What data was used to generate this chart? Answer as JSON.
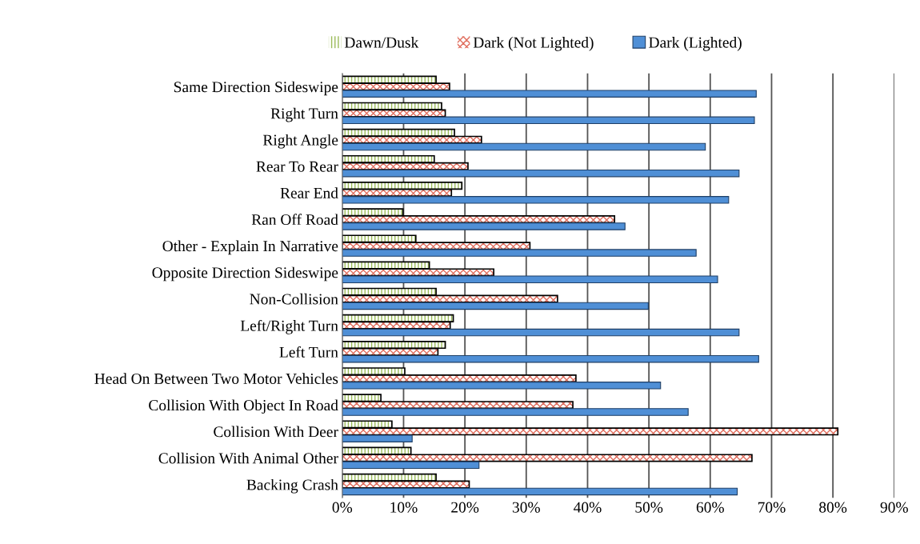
{
  "chart_data": {
    "type": "bar",
    "orientation": "horizontal",
    "categories": [
      "Same Direction Sideswipe",
      "Right Turn",
      "Right Angle",
      "Rear To Rear",
      "Rear End",
      "Ran Off Road",
      "Other - Explain In Narrative",
      "Opposite Direction Sideswipe",
      "Non-Collision",
      "Left/Right Turn",
      "Left Turn",
      "Head On Between Two Motor Vehicles",
      "Collision With Object In Road",
      "Collision With Deer",
      "Collision With Animal Other",
      "Backing Crash"
    ],
    "series": [
      {
        "name": "Dawn/Dusk",
        "color": "#9bbb59",
        "values": [
          15.3,
          16.2,
          18.3,
          15.0,
          19.5,
          9.9,
          12.0,
          14.2,
          15.3,
          18.1,
          16.8,
          10.2,
          6.3,
          8.1,
          11.2,
          15.3
        ]
      },
      {
        "name": "Dark (Not Lighted)",
        "color": "#e06c5c",
        "values": [
          17.5,
          16.8,
          22.7,
          20.5,
          17.8,
          44.4,
          30.6,
          24.7,
          35.1,
          17.6,
          15.6,
          38.1,
          37.6,
          80.8,
          66.8,
          20.7
        ]
      },
      {
        "name": "Dark (Lighted)",
        "color": "#4f8fd6",
        "values": [
          67.5,
          67.2,
          59.2,
          64.7,
          63.0,
          46.1,
          57.7,
          61.2,
          49.9,
          64.7,
          67.9,
          51.9,
          56.4,
          11.4,
          22.3,
          64.4
        ]
      }
    ],
    "xlim": [
      0,
      90
    ],
    "xticks": [
      {
        "value": 0,
        "label": "0%"
      },
      {
        "value": 10,
        "label": "10%"
      },
      {
        "value": 20,
        "label": "20%"
      },
      {
        "value": 30,
        "label": "30%"
      },
      {
        "value": 40,
        "label": "40%"
      },
      {
        "value": 50,
        "label": "50%"
      },
      {
        "value": 60,
        "label": "60%"
      },
      {
        "value": 70,
        "label": "70%"
      },
      {
        "value": 80,
        "label": "80%"
      },
      {
        "value": 90,
        "label": "90%"
      }
    ],
    "grid": "x",
    "legend": "top"
  }
}
